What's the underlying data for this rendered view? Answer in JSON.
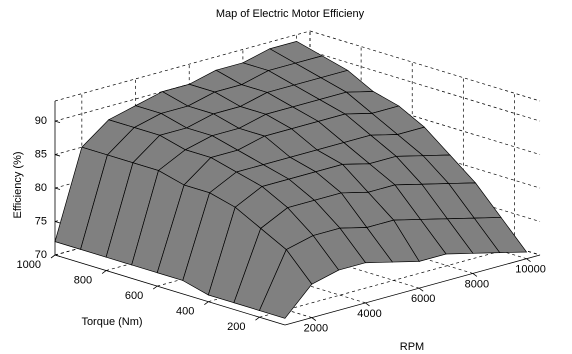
{
  "chart_data": {
    "type": "surface",
    "title": "Map of Electric Motor Efficieny",
    "x_label": "RPM",
    "y_label": "Torque (Nm)",
    "z_label": "Efficiency (%)",
    "x": [
      1000,
      2000,
      3000,
      4000,
      5000,
      6000,
      7000,
      8000,
      9000,
      10000
    ],
    "y": [
      100,
      200,
      300,
      400,
      500,
      600,
      700,
      800,
      900,
      1000
    ],
    "z": [
      [
        71,
        75,
        76,
        76,
        75,
        74,
        74,
        73,
        72,
        71
      ],
      [
        71,
        79,
        80,
        80,
        79,
        79,
        78,
        77,
        76,
        75
      ],
      [
        71,
        81,
        83,
        83,
        83,
        82,
        82,
        81,
        80,
        79
      ],
      [
        71,
        83,
        85,
        85,
        85,
        85,
        84,
        84,
        83,
        82
      ],
      [
        72,
        84,
        86,
        86,
        86,
        86,
        86,
        86,
        85,
        85
      ],
      [
        72,
        84,
        87,
        87,
        88,
        88,
        88,
        88,
        87,
        87
      ],
      [
        72,
        85,
        87,
        88,
        88,
        89,
        89,
        89,
        89,
        88
      ],
      [
        72,
        85,
        88,
        88,
        89,
        89,
        90,
        90,
        90,
        90
      ],
      [
        72,
        85,
        88,
        89,
        89,
        90,
        90,
        91,
        91,
        91
      ],
      [
        72,
        85,
        88,
        89,
        90,
        90,
        91,
        91,
        92,
        92
      ]
    ],
    "color": "#808080",
    "xlim": [
      1000,
      10500
    ],
    "xticks": [
      2000,
      4000,
      6000,
      8000,
      10000
    ],
    "ylim": [
      100,
      1000
    ],
    "yticks": [
      200,
      400,
      600,
      800,
      1000
    ],
    "zlim": [
      70,
      93
    ],
    "zticks": [
      70,
      75,
      80,
      85,
      90
    ],
    "grid": true
  }
}
